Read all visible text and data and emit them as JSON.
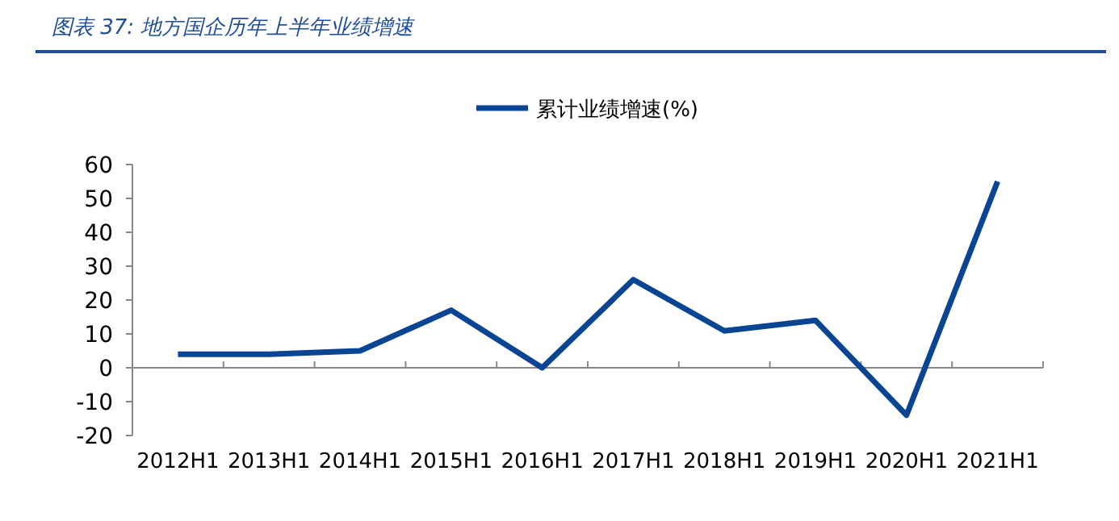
{
  "chart_data": {
    "type": "line",
    "title": "图表 37:  地方国企历年上半年业绩增速",
    "categories": [
      "2012H1",
      "2013H1",
      "2014H1",
      "2015H1",
      "2016H1",
      "2017H1",
      "2018H1",
      "2019H1",
      "2020H1",
      "2021H1"
    ],
    "series": [
      {
        "name": "累计业绩增速(%)",
        "color": "#0a4594",
        "values": [
          4,
          4,
          5,
          17,
          0,
          26,
          10.9,
          14,
          -14,
          55
        ]
      }
    ],
    "ylim": [
      -20,
      60
    ],
    "yticks": [
      -20,
      -10,
      0,
      10,
      20,
      30,
      40,
      50,
      60
    ],
    "legend": "top",
    "marker": "none",
    "line_style": "solid"
  }
}
